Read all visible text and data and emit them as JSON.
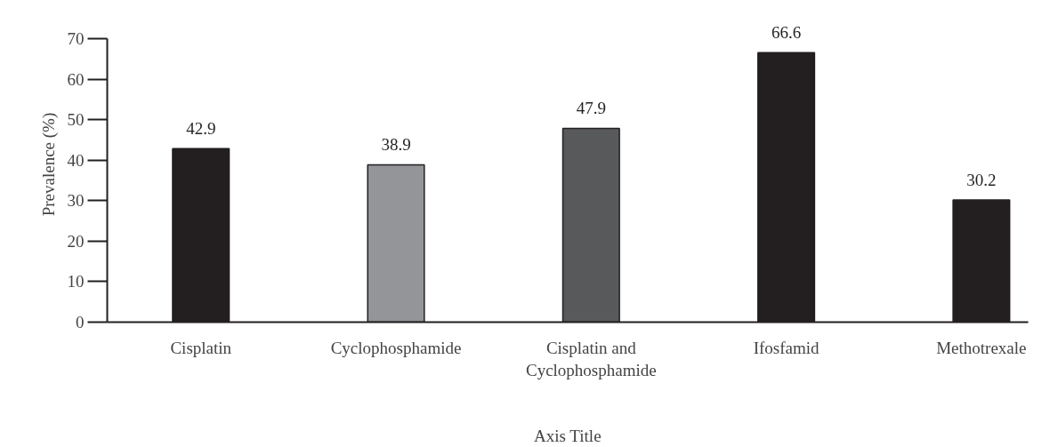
{
  "chart_data": {
    "type": "bar",
    "xlabel": "Axis Title",
    "ylabel": "Prevalence (%)",
    "categories": [
      "Cisplatin",
      "Cyclophosphamide",
      "Cisplatin and\nCyclophosphamide",
      "Ifosfamid",
      "Methotrexale"
    ],
    "values": [
      42.9,
      38.9,
      47.9,
      66.6,
      30.2
    ],
    "colors": [
      "#231f20",
      "#939598",
      "#58595b",
      "#231f20",
      "#231f20"
    ],
    "ylim": [
      0,
      70
    ],
    "yticks": [
      0,
      10,
      20,
      30,
      40,
      50,
      60,
      70
    ],
    "data_labels": true,
    "grid": false
  }
}
